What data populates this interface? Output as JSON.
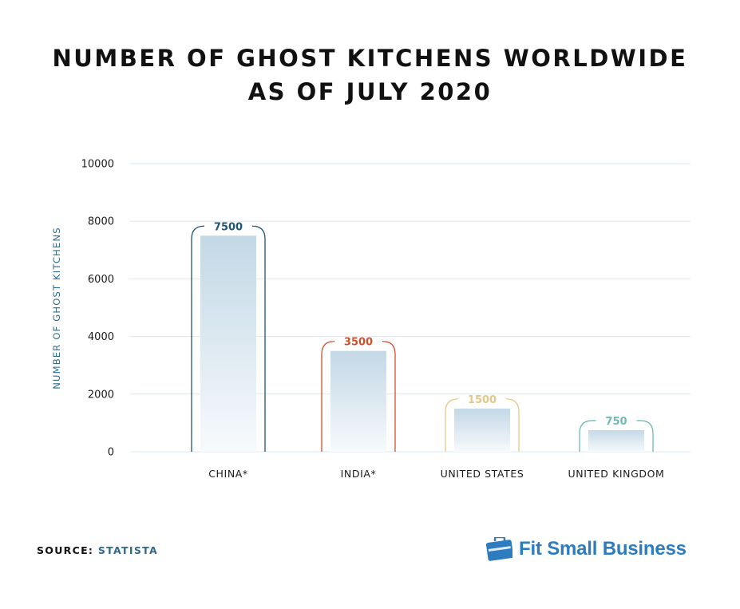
{
  "title": {
    "line1": "NUMBER OF GHOST KITCHENS WORLDWIDE",
    "line2": "AS OF JULY 2020"
  },
  "chart_data": {
    "type": "bar",
    "title": "NUMBER OF GHOST KITCHENS WORLDWIDE AS OF JULY 2020",
    "xlabel": "",
    "ylabel": "NUMBER OF GHOST KITCHENS",
    "categories": [
      "CHINA*",
      "INDIA*",
      "UNITED STATES",
      "UNITED KINGDOM"
    ],
    "values": [
      7500,
      3500,
      1500,
      750
    ],
    "value_labels": [
      "7500",
      "3500",
      "1500",
      "750"
    ],
    "ylim": [
      0,
      10000
    ],
    "yticks": [
      0,
      2000,
      4000,
      6000,
      8000,
      10000
    ],
    "grid": true,
    "bar_colors": [
      "#1f5575",
      "#d0502a",
      "#e2c88a",
      "#6ebcb1"
    ]
  },
  "footer": {
    "source_label": "SOURCE:",
    "source_value": "STATISTA",
    "brand": "Fit Small Business"
  }
}
